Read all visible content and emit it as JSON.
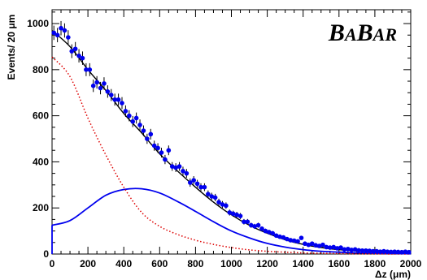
{
  "chart_data": {
    "type": "scatter",
    "xlabel": "Δz (μm)",
    "ylabel": "Events/ 20 μm",
    "xlim": [
      0,
      2000
    ],
    "ylim": [
      0,
      1060
    ],
    "xticks": [
      0,
      200,
      400,
      600,
      800,
      1000,
      1200,
      1400,
      1600,
      1800,
      2000
    ],
    "yticks": [
      0,
      200,
      400,
      600,
      800,
      1000
    ],
    "logo": {
      "part1": "B",
      "part2": "A",
      "part3": "B",
      "part4": "AR"
    },
    "grid": false,
    "colors": {
      "data": "#0000ee",
      "total_fit": "#000000",
      "signal": "#0000ee",
      "background": "#dd0000"
    },
    "series": [
      {
        "kind": "data_points_with_errors",
        "x": [
          10,
          30,
          50,
          70,
          90,
          110,
          130,
          150,
          170,
          190,
          210,
          230,
          250,
          270,
          290,
          310,
          330,
          350,
          370,
          390,
          410,
          430,
          450,
          470,
          490,
          510,
          530,
          550,
          570,
          590,
          610,
          630,
          650,
          670,
          690,
          710,
          730,
          750,
          770,
          790,
          810,
          830,
          850,
          870,
          890,
          910,
          930,
          950,
          970,
          990,
          1010,
          1030,
          1050,
          1070,
          1090,
          1110,
          1130,
          1150,
          1170,
          1190,
          1210,
          1230,
          1250,
          1270,
          1290,
          1310,
          1330,
          1350,
          1370,
          1390,
          1410,
          1430,
          1450,
          1470,
          1490,
          1510,
          1530,
          1550,
          1570,
          1590,
          1610,
          1630,
          1650,
          1670,
          1690,
          1710,
          1730,
          1750,
          1770,
          1790,
          1810,
          1830,
          1850,
          1870,
          1890,
          1910,
          1930,
          1950,
          1970,
          1990
        ],
        "y": [
          960,
          950,
          980,
          970,
          940,
          880,
          890,
          860,
          850,
          800,
          800,
          730,
          745,
          720,
          740,
          705,
          690,
          670,
          670,
          655,
          620,
          600,
          575,
          590,
          560,
          535,
          500,
          520,
          470,
          460,
          440,
          410,
          450,
          380,
          375,
          380,
          360,
          350,
          310,
          320,
          305,
          290,
          290,
          260,
          250,
          245,
          225,
          215,
          210,
          180,
          175,
          170,
          165,
          140,
          140,
          125,
          120,
          125,
          110,
          100,
          95,
          90,
          80,
          75,
          72,
          65,
          60,
          58,
          55,
          70,
          45,
          40,
          45,
          38,
          35,
          40,
          30,
          28,
          30,
          25,
          28,
          20,
          22,
          18,
          20,
          16,
          15,
          15,
          14,
          12,
          12,
          10,
          12,
          10,
          9,
          10,
          9,
          8,
          10,
          8
        ],
        "yerr": [
          31,
          31,
          31,
          31,
          31,
          30,
          30,
          29,
          29,
          28,
          28,
          27,
          27,
          27,
          27,
          27,
          26,
          26,
          26,
          26,
          25,
          24,
          24,
          24,
          24,
          23,
          22,
          23,
          22,
          21,
          21,
          20,
          21,
          19,
          19,
          19,
          19,
          19,
          18,
          18,
          17,
          17,
          17,
          16,
          16,
          16,
          15,
          15,
          14,
          13,
          13,
          13,
          13,
          12,
          12,
          11,
          11,
          11,
          10,
          10,
          10,
          9,
          9,
          9,
          8,
          8,
          8,
          8,
          7,
          8,
          7,
          6,
          7,
          6,
          6,
          6,
          5,
          5,
          5,
          5,
          5,
          4,
          5,
          4,
          4,
          4,
          4,
          4,
          4,
          3,
          3,
          3,
          3,
          3,
          3,
          3,
          3,
          3,
          3,
          3
        ]
      },
      {
        "kind": "total_fit_curve",
        "x": [
          0,
          100,
          200,
          300,
          400,
          500,
          600,
          700,
          800,
          900,
          1000,
          1100,
          1200,
          1300,
          1400,
          1500,
          1600,
          1700,
          1800,
          1900,
          2000
        ],
        "y": [
          970,
          900,
          800,
          710,
          610,
          525,
          435,
          360,
          290,
          225,
          170,
          125,
          90,
          62,
          42,
          28,
          19,
          13,
          9,
          7,
          5
        ]
      },
      {
        "kind": "signal_curve",
        "x": [
          0,
          100,
          200,
          300,
          400,
          500,
          600,
          700,
          800,
          900,
          1000,
          1100,
          1200,
          1300,
          1400,
          1500,
          1600,
          1700,
          1800,
          1900,
          2000
        ],
        "y": [
          125,
          145,
          200,
          255,
          280,
          283,
          265,
          228,
          185,
          140,
          100,
          70,
          46,
          30,
          19,
          12,
          8,
          5,
          3,
          2,
          1
        ]
      },
      {
        "kind": "background_curve",
        "x": [
          0,
          100,
          200,
          300,
          400,
          500,
          600,
          700,
          800,
          900,
          1000,
          1100,
          1200,
          1300,
          1400,
          1500,
          1600,
          1700,
          1800,
          1900,
          2000
        ],
        "y": [
          855,
          770,
          590,
          430,
          290,
          180,
          120,
          85,
          60,
          42,
          28,
          18,
          12,
          8,
          5,
          3,
          2,
          1,
          1,
          0,
          0
        ]
      }
    ]
  }
}
